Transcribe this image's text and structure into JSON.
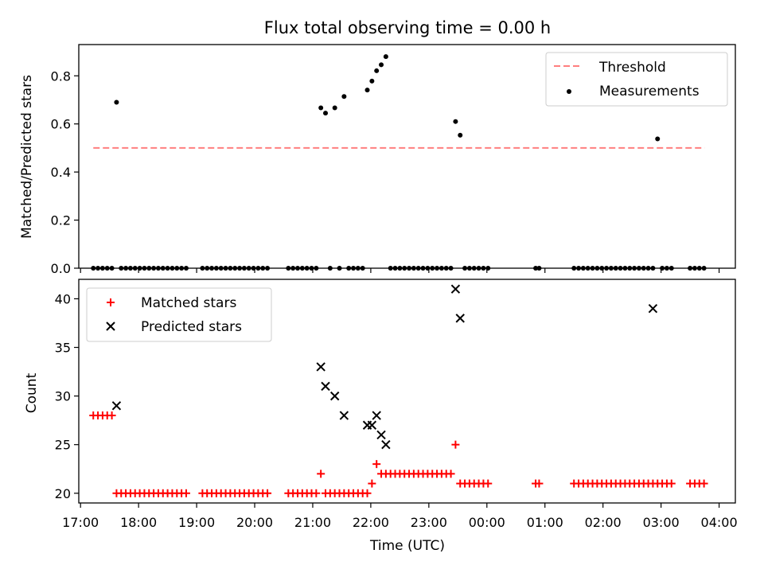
{
  "figure": {
    "title": "Flux total observing time = 0.00 h"
  },
  "chart_data": [
    {
      "type": "scatter",
      "panel": "top",
      "ylabel": "Matched/Predicted stars",
      "xlabel": "",
      "x_unit": "hours since 17:00 UTC",
      "xlim": [
        16.97,
        28.28
      ],
      "ylim": [
        0.0,
        0.93
      ],
      "yticks": [
        0.0,
        0.2,
        0.4,
        0.6,
        0.8
      ],
      "ytick_labels": [
        "0.0",
        "0.2",
        "0.4",
        "0.6",
        "0.8"
      ],
      "grid": false,
      "legend": {
        "placement": "top-right",
        "entries": [
          "Threshold",
          "Measurements"
        ]
      },
      "threshold": {
        "name": "Threshold",
        "value": 0.5,
        "x_start": 17.22,
        "x_end": 27.75,
        "color": "#ff7f7f",
        "style": "dashed"
      },
      "measurements": {
        "name": "Measurements",
        "color": "#000000",
        "x": [
          17.22,
          17.3,
          17.38,
          17.46,
          17.54,
          17.62,
          17.7,
          17.78,
          17.86,
          17.94,
          18.02,
          18.1,
          18.18,
          18.26,
          18.34,
          18.42,
          18.5,
          18.58,
          18.66,
          18.74,
          18.82,
          19.1,
          19.18,
          19.26,
          19.34,
          19.42,
          19.5,
          19.58,
          19.66,
          19.74,
          19.82,
          19.9,
          19.98,
          20.06,
          20.14,
          20.22,
          20.58,
          20.66,
          20.74,
          20.82,
          20.9,
          20.98,
          21.06,
          21.14,
          21.22,
          21.3,
          21.38,
          21.46,
          21.54,
          21.62,
          21.7,
          21.78,
          21.86,
          21.94,
          22.02,
          22.1,
          22.18,
          22.26,
          22.34,
          22.42,
          22.5,
          22.58,
          22.66,
          22.74,
          22.82,
          22.9,
          22.98,
          23.06,
          23.14,
          23.22,
          23.3,
          23.38,
          23.46,
          23.54,
          23.62,
          23.7,
          23.78,
          23.86,
          23.94,
          24.02,
          24.84,
          24.9,
          25.5,
          25.58,
          25.66,
          25.74,
          25.82,
          25.9,
          25.98,
          26.06,
          26.14,
          26.22,
          26.3,
          26.38,
          26.46,
          26.54,
          26.62,
          26.7,
          26.78,
          26.86,
          26.94,
          27.02,
          27.1,
          27.18,
          27.5,
          27.58,
          27.66,
          27.74
        ],
        "y": [
          0,
          0,
          0,
          0,
          0,
          0.69,
          0,
          0,
          0,
          0,
          0,
          0,
          0,
          0,
          0,
          0,
          0,
          0,
          0,
          0,
          0,
          0,
          0,
          0,
          0,
          0,
          0,
          0,
          0,
          0,
          0,
          0,
          0,
          0,
          0,
          0,
          0,
          0,
          0,
          0,
          0,
          0,
          0,
          0.667,
          0.645,
          0,
          0.667,
          0,
          0.714,
          0,
          0,
          0,
          0,
          0.741,
          0.778,
          0.821,
          0.846,
          0.88,
          0,
          0,
          0,
          0,
          0,
          0,
          0,
          0,
          0,
          0,
          0,
          0,
          0,
          0,
          0.61,
          0.553,
          0,
          0,
          0,
          0,
          0,
          0,
          0,
          0,
          0,
          0,
          0,
          0,
          0,
          0,
          0,
          0,
          0,
          0,
          0,
          0,
          0,
          0,
          0,
          0,
          0,
          0,
          0.538,
          0,
          0,
          0,
          0,
          0,
          0,
          0
        ]
      }
    },
    {
      "type": "scatter",
      "panel": "bottom",
      "xlabel": "Time (UTC)",
      "ylabel": "Count",
      "x_unit": "hours since 17:00 UTC",
      "xlim": [
        16.97,
        28.28
      ],
      "ylim": [
        19.0,
        42.0
      ],
      "yticks": [
        20,
        25,
        30,
        35,
        40
      ],
      "ytick_labels": [
        "20",
        "25",
        "30",
        "35",
        "40"
      ],
      "xticks": [
        17,
        18,
        19,
        20,
        21,
        22,
        23,
        24,
        25,
        26,
        27,
        28
      ],
      "xtick_labels": [
        "17:00",
        "18:00",
        "19:00",
        "20:00",
        "21:00",
        "22:00",
        "23:00",
        "00:00",
        "01:00",
        "02:00",
        "03:00",
        "04:00"
      ],
      "grid": false,
      "legend": {
        "placement": "top-left",
        "entries": [
          "Matched stars",
          "Predicted stars"
        ]
      },
      "series": [
        {
          "name": "Matched stars",
          "marker": "plus",
          "color": "#ff0000",
          "x": [
            17.22,
            17.3,
            17.38,
            17.46,
            17.54,
            17.62,
            17.7,
            17.78,
            17.86,
            17.94,
            18.02,
            18.1,
            18.18,
            18.26,
            18.34,
            18.42,
            18.5,
            18.58,
            18.66,
            18.74,
            18.82,
            19.1,
            19.18,
            19.26,
            19.34,
            19.42,
            19.5,
            19.58,
            19.66,
            19.74,
            19.82,
            19.9,
            19.98,
            20.06,
            20.14,
            20.22,
            20.58,
            20.66,
            20.74,
            20.82,
            20.9,
            20.98,
            21.06,
            21.14,
            21.22,
            21.3,
            21.38,
            21.46,
            21.54,
            21.62,
            21.7,
            21.78,
            21.86,
            21.94,
            22.02,
            22.1,
            22.18,
            22.26,
            22.34,
            22.42,
            22.5,
            22.58,
            22.66,
            22.74,
            22.82,
            22.9,
            22.98,
            23.06,
            23.14,
            23.22,
            23.3,
            23.38,
            23.46,
            23.54,
            23.62,
            23.7,
            23.78,
            23.86,
            23.94,
            24.02,
            24.84,
            24.9,
            25.5,
            25.58,
            25.66,
            25.74,
            25.82,
            25.9,
            25.98,
            26.06,
            26.14,
            26.22,
            26.3,
            26.38,
            26.46,
            26.54,
            26.62,
            26.7,
            26.78,
            26.86,
            26.94,
            27.02,
            27.1,
            27.18,
            27.5,
            27.58,
            27.66,
            27.74
          ],
          "y": [
            28,
            28,
            28,
            28,
            28,
            20,
            20,
            20,
            20,
            20,
            20,
            20,
            20,
            20,
            20,
            20,
            20,
            20,
            20,
            20,
            20,
            20,
            20,
            20,
            20,
            20,
            20,
            20,
            20,
            20,
            20,
            20,
            20,
            20,
            20,
            20,
            20,
            20,
            20,
            20,
            20,
            20,
            20,
            22,
            20,
            20,
            20,
            20,
            20,
            20,
            20,
            20,
            20,
            20,
            21,
            23,
            22,
            22,
            22,
            22,
            22,
            22,
            22,
            22,
            22,
            22,
            22,
            22,
            22,
            22,
            22,
            22,
            25,
            21,
            21,
            21,
            21,
            21,
            21,
            21,
            21,
            21,
            21,
            21,
            21,
            21,
            21,
            21,
            21,
            21,
            21,
            21,
            21,
            21,
            21,
            21,
            21,
            21,
            21,
            21,
            21,
            21,
            21,
            21,
            21,
            21,
            21,
            21
          ]
        },
        {
          "name": "Predicted stars",
          "marker": "x",
          "color": "#000000",
          "x": [
            17.62,
            21.14,
            21.22,
            21.38,
            21.54,
            21.94,
            22.02,
            22.1,
            22.18,
            22.26,
            23.46,
            23.54,
            26.86
          ],
          "y": [
            29,
            33,
            31,
            30,
            28,
            27,
            27,
            28,
            26,
            25,
            41,
            38,
            39
          ]
        }
      ]
    }
  ]
}
